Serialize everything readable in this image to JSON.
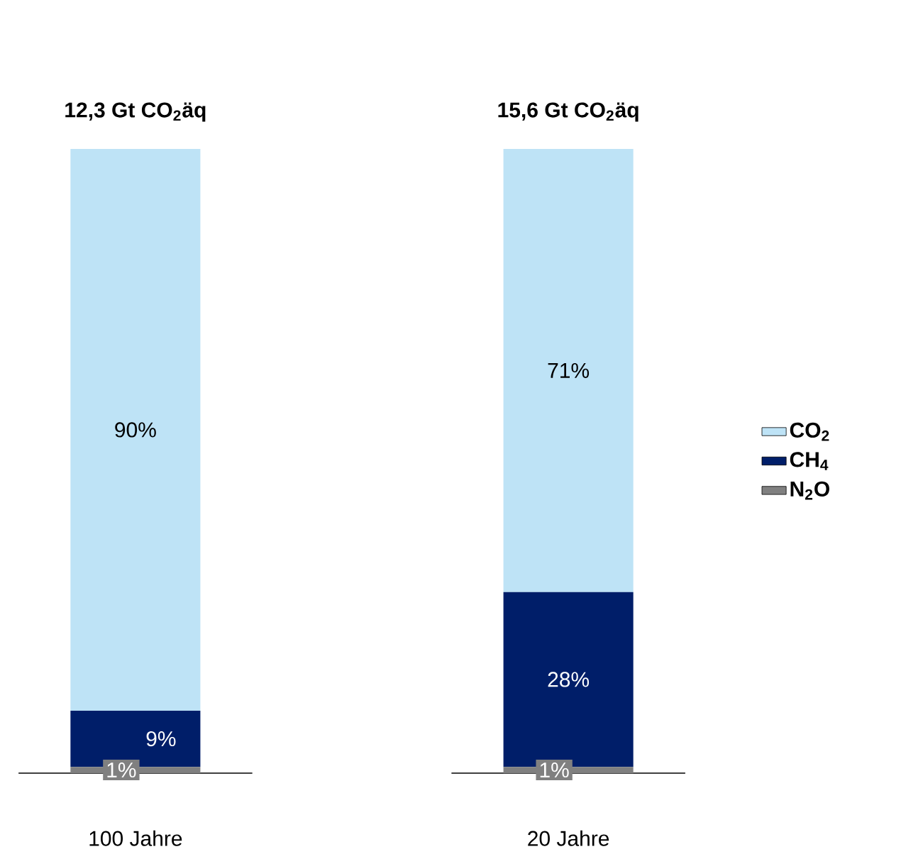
{
  "chart_data": {
    "type": "bar",
    "stacked": true,
    "legend": "right",
    "categories": [
      "100 Jahre",
      "20 Jahre"
    ],
    "totals": [
      "12,3 Gt CO$_{2}$äq",
      "15,6 Gt CO$_{2}$äq"
    ],
    "series": [
      {
        "name": "N$_{2}$O",
        "color": "#808080",
        "values": [
          1,
          1
        ],
        "value_labels": [
          "1%",
          "1%"
        ]
      },
      {
        "name": "CH$_{4}$",
        "color": "#001e69",
        "values": [
          9,
          28
        ],
        "value_labels": [
          "9%",
          "28%"
        ]
      },
      {
        "name": "CO$_{2}$",
        "color": "#bee3f6",
        "values": [
          90,
          71
        ],
        "value_labels": [
          "90%",
          "71%"
        ]
      }
    ]
  }
}
